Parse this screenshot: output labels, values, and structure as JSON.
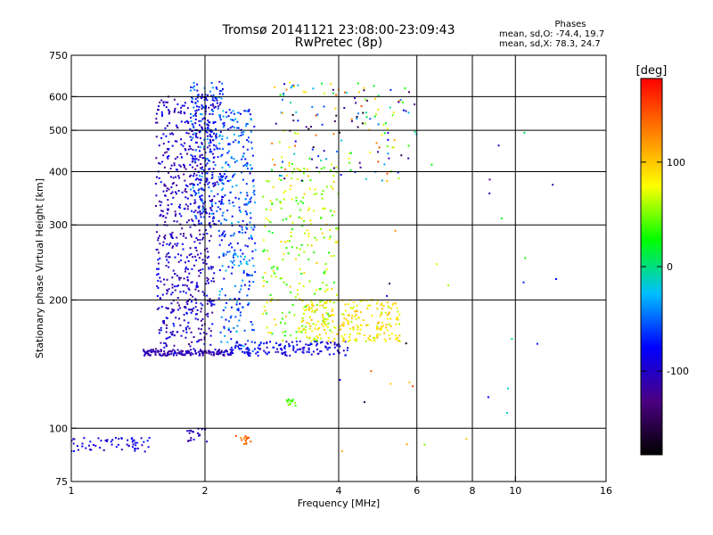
{
  "chart_data": {
    "type": "scatter",
    "title": "Tromsø 20141121 23:08:00-23:09:43",
    "subtitle": "RwPretec (8p)",
    "xlabel": "Frequency [MHz]",
    "ylabel": "Stationary phase Virtual Height [km]",
    "x_scale": "log",
    "y_scale": "log",
    "xlim": [
      1,
      16
    ],
    "ylim": [
      75,
      750
    ],
    "x_ticks": [
      1,
      2,
      4,
      6,
      8,
      10,
      16
    ],
    "y_ticks": [
      75,
      100,
      200,
      300,
      400,
      500,
      600,
      750
    ],
    "grid": true,
    "stats": {
      "heading": "Phases",
      "line_o": "mean, sd,O: -74.4, 19.7",
      "line_x": "mean, sd,X:  78.3, 24.7"
    },
    "colorbar": {
      "label": "[deg]",
      "ticks": [
        100,
        0,
        -100
      ],
      "range": [
        -180,
        180
      ],
      "colors": [
        "#000000",
        "#4b0082",
        "#0000ff",
        "#00bfff",
        "#00ff00",
        "#ffff00",
        "#ff8000",
        "#ff0000"
      ]
    },
    "clusters": [
      {
        "name": "low-blue",
        "f": [
          1.0,
          1.5
        ],
        "h": [
          88,
          95
        ],
        "phase": [
          -110,
          -70
        ],
        "n": 60
      },
      {
        "name": "E-blue",
        "f": [
          1.82,
          2.02
        ],
        "h": [
          93,
          100
        ],
        "phase": [
          -120,
          -90
        ],
        "n": 20
      },
      {
        "name": "E-orange",
        "f": [
          2.32,
          2.55
        ],
        "h": [
          90,
          96
        ],
        "phase": [
          120,
          160
        ],
        "n": 16
      },
      {
        "name": "lower-trace-blue",
        "f": [
          1.45,
          2.3
        ],
        "h": [
          148,
          153
        ],
        "phase": [
          -120,
          -95
        ],
        "n": 160
      },
      {
        "name": "F-blue-main",
        "f": [
          1.55,
          2.1
        ],
        "h": [
          150,
          600
        ],
        "phase": [
          -130,
          -70
        ],
        "n": 650
      },
      {
        "name": "F-upper-blue",
        "f": [
          1.85,
          2.2
        ],
        "h": [
          300,
          650
        ],
        "phase": [
          -110,
          -30
        ],
        "n": 280
      },
      {
        "name": "F-cyan",
        "f": [
          2.15,
          2.6
        ],
        "h": [
          150,
          560
        ],
        "phase": [
          -90,
          -20
        ],
        "n": 330
      },
      {
        "name": "O-trace",
        "f": [
          2.3,
          4.2
        ],
        "h": [
          148,
          160
        ],
        "phase": [
          -110,
          -60
        ],
        "n": 150
      },
      {
        "name": "X-green",
        "f": [
          2.7,
          4.0
        ],
        "h": [
          160,
          420
        ],
        "phase": [
          20,
          100
        ],
        "n": 260
      },
      {
        "name": "X-yellow",
        "f": [
          3.3,
          5.5
        ],
        "h": [
          160,
          200
        ],
        "phase": [
          60,
          110
        ],
        "n": 240
      },
      {
        "name": "upper-mixed",
        "f": [
          2.8,
          6.0
        ],
        "h": [
          380,
          650
        ],
        "phase": [
          -170,
          150
        ],
        "n": 170
      },
      {
        "name": "green-118",
        "f": [
          3.05,
          3.2
        ],
        "h": [
          113,
          117
        ],
        "phase": [
          30,
          60
        ],
        "n": 14
      },
      {
        "name": "sparse-right",
        "f": [
          4.0,
          13.0
        ],
        "h": [
          80,
          500
        ],
        "phase": [
          -170,
          160
        ],
        "n": 32
      }
    ]
  }
}
